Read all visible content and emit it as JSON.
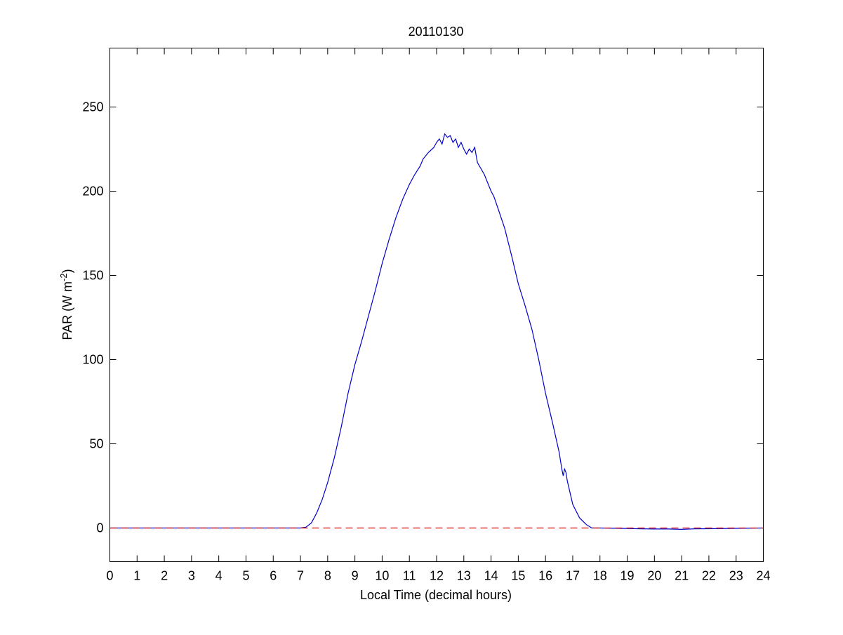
{
  "chart_data": {
    "type": "line",
    "title": "20110130",
    "xlabel": "Local Time (decimal hours)",
    "ylabel_main": "PAR (W m",
    "ylabel_sup": "-2",
    "ylabel_close": ")",
    "xlim": [
      0,
      24
    ],
    "ylim": [
      -20,
      285
    ],
    "xticks": [
      0,
      1,
      2,
      3,
      4,
      5,
      6,
      7,
      8,
      9,
      10,
      11,
      12,
      13,
      14,
      15,
      16,
      17,
      18,
      19,
      20,
      21,
      22,
      23,
      24
    ],
    "yticks": [
      0,
      50,
      100,
      150,
      200,
      250
    ],
    "grid": false,
    "colors": {
      "series": "#0000cc",
      "zero_line": "#dd0000"
    },
    "series": [
      {
        "style": "solid",
        "x": [
          0,
          7.0,
          7.2,
          7.4,
          7.6,
          7.8,
          8.0,
          8.25,
          8.5,
          8.75,
          9.0,
          9.25,
          9.5,
          9.75,
          10.0,
          10.25,
          10.5,
          10.75,
          11.0,
          11.2,
          11.4,
          11.5,
          11.7,
          11.9,
          12.0,
          12.1,
          12.2,
          12.3,
          12.4,
          12.5,
          12.6,
          12.7,
          12.8,
          12.9,
          13.0,
          13.1,
          13.2,
          13.3,
          13.4,
          13.5,
          13.75,
          14.0,
          14.1,
          14.25,
          14.5,
          14.75,
          15.0,
          15.25,
          15.5,
          15.75,
          16.0,
          16.25,
          16.5,
          16.6,
          16.65,
          16.7,
          16.75,
          16.8,
          17.0,
          17.25,
          17.5,
          17.7,
          18.0,
          19.0,
          19.5,
          20.0,
          20.5,
          21.0,
          21.5,
          22.0,
          23.0,
          24.0
        ],
        "y": [
          0,
          0,
          0.5,
          3,
          9,
          17,
          27,
          42,
          60,
          80,
          97,
          111,
          126,
          141,
          157,
          171,
          184,
          195,
          204,
          210,
          215,
          219,
          223,
          226,
          229,
          231,
          228,
          234,
          232,
          233,
          229,
          231,
          226,
          229,
          225,
          222,
          225,
          223,
          226,
          217,
          210,
          200,
          197,
          190,
          178,
          162,
          145,
          132,
          118,
          100,
          80,
          63,
          45,
          35,
          31,
          35,
          33,
          28,
          14,
          6,
          2,
          0,
          0,
          -0.3,
          -0.5,
          -0.6,
          -0.6,
          -0.8,
          -0.5,
          -0.4,
          -0.2,
          0
        ]
      },
      {
        "style": "dashed",
        "x": [
          0,
          24
        ],
        "y": [
          0,
          0
        ]
      }
    ]
  }
}
